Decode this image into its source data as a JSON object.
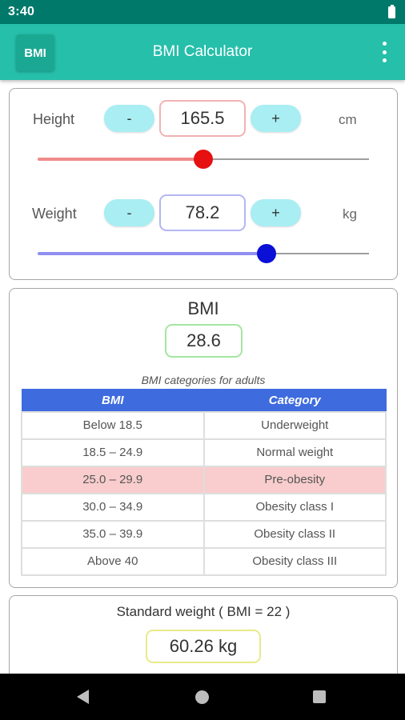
{
  "status_bar": {
    "time": "3:40"
  },
  "app_bar": {
    "logo_text": "BMI",
    "title": "BMI Calculator"
  },
  "height": {
    "label": "Height",
    "minus": "-",
    "value": "165.5",
    "plus": "+",
    "unit": "cm",
    "slider_fraction": 0.5,
    "accent": "#f08b8b",
    "thumb_color": "#e61010"
  },
  "weight": {
    "label": "Weight",
    "minus": "-",
    "value": "78.2",
    "plus": "+",
    "unit": "kg",
    "slider_fraction": 0.69,
    "accent": "#8f8ff2",
    "thumb_color": "#0a10d6"
  },
  "bmi": {
    "heading": "BMI",
    "value": "28.6",
    "table_caption": "BMI categories for adults",
    "headers": [
      "BMI",
      "Category"
    ],
    "rows": [
      [
        "Below 18.5",
        "Underweight"
      ],
      [
        "18.5 – 24.9",
        "Normal weight"
      ],
      [
        "25.0 – 29.9",
        "Pre-obesity"
      ],
      [
        "30.0 – 34.9",
        "Obesity class I"
      ],
      [
        "35.0 – 39.9",
        "Obesity class II"
      ],
      [
        "Above 40",
        "Obesity class III"
      ]
    ],
    "highlight_row": 2
  },
  "standard_weight": {
    "title": "Standard weight ( BMI = 22 )",
    "value": "60.26 kg"
  }
}
